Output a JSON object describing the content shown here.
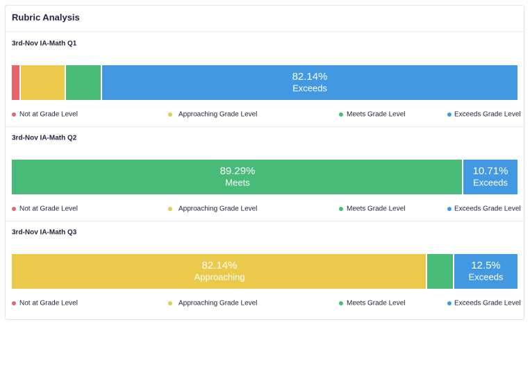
{
  "card_title": "Rubric Analysis",
  "chart_data": [
    {
      "type": "stacked-bar",
      "title": "3rd-Nov IA-Math Q1",
      "xlim": [
        0,
        100
      ],
      "series": [
        {
          "name": "Not at Grade Level",
          "color": "#e8646a",
          "values": [
            1.79
          ]
        },
        {
          "name": "Approaching Grade Level",
          "color": "#ebc94b",
          "values": [
            8.93
          ]
        },
        {
          "name": "Meets Grade Level",
          "color": "#48bb78",
          "values": [
            7.14
          ]
        },
        {
          "name": "Exceeds Grade Level",
          "color": "#4299e1",
          "values": [
            82.14
          ],
          "value_labels": [
            "82.14%"
          ],
          "short_name": "Exceeds"
        }
      ]
    },
    {
      "type": "stacked-bar",
      "title": "3rd-Nov IA-Math Q2",
      "xlim": [
        0,
        100
      ],
      "series": [
        {
          "name": "Not at Grade Level",
          "color": "#e8646a",
          "values": [
            0
          ]
        },
        {
          "name": "Approaching Grade Level",
          "color": "#ebc94b",
          "values": [
            0
          ]
        },
        {
          "name": "Meets Grade Level",
          "color": "#48bb78",
          "values": [
            89.29
          ],
          "value_labels": [
            "89.29%"
          ],
          "short_name": "Meets"
        },
        {
          "name": "Exceeds Grade Level",
          "color": "#4299e1",
          "values": [
            10.71
          ],
          "value_labels": [
            "10.71%"
          ],
          "short_name": "Exceeds"
        }
      ]
    },
    {
      "type": "stacked-bar",
      "title": "3rd-Nov IA-Math Q3",
      "xlim": [
        0,
        100
      ],
      "series": [
        {
          "name": "Not at Grade Level",
          "color": "#e8646a",
          "values": [
            0
          ]
        },
        {
          "name": "Approaching Grade Level",
          "color": "#ebc94b",
          "values": [
            82.14
          ],
          "value_labels": [
            "82.14%"
          ],
          "short_name": "Approaching"
        },
        {
          "name": "Meets Grade Level",
          "color": "#48bb78",
          "values": [
            5.36
          ]
        },
        {
          "name": "Exceeds Grade Level",
          "color": "#4299e1",
          "values": [
            12.5
          ],
          "value_labels": [
            "12.5%"
          ],
          "short_name": "Exceeds"
        }
      ]
    }
  ]
}
